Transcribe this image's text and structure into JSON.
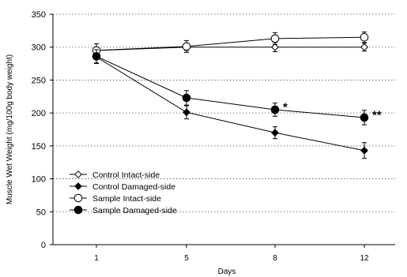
{
  "chart_data": {
    "type": "line",
    "xlabel": "Days",
    "ylabel": "Muscle Wet Weight (mg/100g body weight)",
    "categories": [
      "1",
      "5",
      "8",
      "12"
    ],
    "ylim": [
      0,
      350
    ],
    "yticks": [
      0,
      50,
      100,
      150,
      200,
      250,
      300,
      350
    ],
    "grid": true,
    "legend_placement": "bottom-left",
    "series": [
      {
        "name": "Control Intact-side",
        "marker": "open-diamond",
        "values": [
          295,
          300,
          300,
          300
        ],
        "errors": [
          5,
          5,
          7,
          6
        ]
      },
      {
        "name": "Control Damaged-side",
        "marker": "filled-diamond",
        "values": [
          285,
          201,
          170,
          143
        ],
        "errors": [
          10,
          10,
          9,
          12
        ]
      },
      {
        "name": "Sample Intact-side",
        "marker": "open-circle",
        "values": [
          295,
          301,
          313,
          315
        ],
        "errors": [
          10,
          9,
          9,
          8
        ]
      },
      {
        "name": "Sample Damaged-side",
        "marker": "filled-circle",
        "values": [
          286,
          223,
          205,
          193
        ],
        "errors": [
          10,
          11,
          10,
          11
        ]
      }
    ],
    "annotations": [
      {
        "text": "*",
        "category": "8",
        "y": 213
      },
      {
        "text": "**",
        "category": "12",
        "y": 201
      }
    ]
  }
}
